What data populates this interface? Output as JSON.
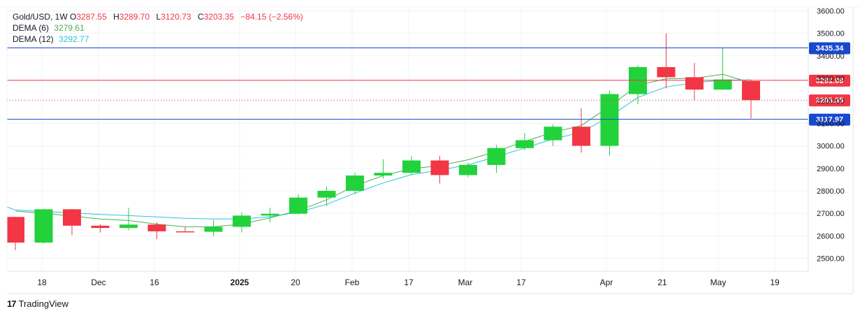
{
  "legend": {
    "symbol": "Gold/USD, 1W",
    "ohlc": [
      {
        "label": "O",
        "value": "3287.55"
      },
      {
        "label": "H",
        "value": "3289.70"
      },
      {
        "label": "L",
        "value": "3120.73"
      },
      {
        "label": "C",
        "value": "3203.35"
      }
    ],
    "change": "−84.15 (−2.56%)",
    "dema6_label": "DEMA (6)",
    "dema6_value": "3279.61",
    "dema12_label": "DEMA (12)",
    "dema12_value": "3292.77"
  },
  "colors": {
    "up": "#22d23b",
    "down": "#f23645",
    "dema6": "#4caf50",
    "dema12": "#26c6da",
    "blue_line": "#1848cc",
    "red_line": "#f23645"
  },
  "brand": {
    "logo": "17",
    "name": "TradingView"
  },
  "chart_data": {
    "type": "candlestick",
    "ylim": [
      2450,
      3620
    ],
    "y_ticks": [
      "3600.00",
      "3500.00",
      "3400.00",
      "3300.00",
      "3200.00",
      "3100.00",
      "3000.00",
      "2900.00",
      "2800.00",
      "2700.00",
      "2600.00",
      "2500.00"
    ],
    "x_labels": [
      "18",
      "Dec",
      "16",
      "2025",
      "20",
      "Feb",
      "17",
      "Mar",
      "17",
      "Apr",
      "21",
      "May",
      "19"
    ],
    "candles": [
      {
        "o": 2684,
        "h": 2685,
        "l": 2537,
        "c": 2570
      },
      {
        "o": 2570,
        "h": 2721,
        "l": 2565,
        "c": 2718
      },
      {
        "o": 2718,
        "h": 2720,
        "l": 2603,
        "c": 2645
      },
      {
        "o": 2645,
        "h": 2651,
        "l": 2615,
        "c": 2635
      },
      {
        "o": 2635,
        "h": 2725,
        "l": 2625,
        "c": 2650
      },
      {
        "o": 2650,
        "h": 2660,
        "l": 2585,
        "c": 2620
      },
      {
        "o": 2620,
        "h": 2640,
        "l": 2615,
        "c": 2618
      },
      {
        "o": 2618,
        "h": 2670,
        "l": 2597,
        "c": 2640
      },
      {
        "o": 2640,
        "h": 2705,
        "l": 2615,
        "c": 2690
      },
      {
        "o": 2690,
        "h": 2725,
        "l": 2660,
        "c": 2698
      },
      {
        "o": 2698,
        "h": 2786,
        "l": 2695,
        "c": 2770
      },
      {
        "o": 2770,
        "h": 2818,
        "l": 2732,
        "c": 2800
      },
      {
        "o": 2800,
        "h": 2880,
        "l": 2785,
        "c": 2868
      },
      {
        "o": 2868,
        "h": 2940,
        "l": 2855,
        "c": 2880
      },
      {
        "o": 2880,
        "h": 2955,
        "l": 2870,
        "c": 2935
      },
      {
        "o": 2935,
        "h": 2956,
        "l": 2833,
        "c": 2870
      },
      {
        "o": 2870,
        "h": 2925,
        "l": 2860,
        "c": 2915
      },
      {
        "o": 2915,
        "h": 3004,
        "l": 2880,
        "c": 2990
      },
      {
        "o": 2990,
        "h": 3057,
        "l": 2980,
        "c": 3025
      },
      {
        "o": 3025,
        "h": 3095,
        "l": 3000,
        "c": 3085
      },
      {
        "o": 3085,
        "h": 3166,
        "l": 2970,
        "c": 3000
      },
      {
        "o": 3000,
        "h": 3245,
        "l": 2957,
        "c": 3230
      },
      {
        "o": 3230,
        "h": 3358,
        "l": 3185,
        "c": 3350
      },
      {
        "o": 3350,
        "h": 3500,
        "l": 3255,
        "c": 3305
      },
      {
        "o": 3305,
        "h": 3368,
        "l": 3202,
        "c": 3250
      },
      {
        "o": 3250,
        "h": 3435,
        "l": 3248,
        "c": 3295
      },
      {
        "o": 3288,
        "h": 3290,
        "l": 3121,
        "c": 3203
      }
    ],
    "dema6": [
      2710,
      2700,
      2688,
      2675,
      2668,
      2652,
      2640,
      2640,
      2652,
      2680,
      2712,
      2760,
      2822,
      2868,
      2898,
      2912,
      2938,
      2975,
      3020,
      3060,
      3090,
      3175,
      3270,
      3298,
      3300,
      3318,
      3280
    ],
    "dema12": [
      2715,
      2708,
      2702,
      2695,
      2690,
      2684,
      2678,
      2675,
      2675,
      2685,
      2705,
      2740,
      2790,
      2835,
      2872,
      2892,
      2915,
      2952,
      2990,
      3030,
      3060,
      3130,
      3215,
      3262,
      3280,
      3292,
      3293
    ],
    "price_lines": [
      {
        "value": 3435.34,
        "label": "3435.34",
        "style": "solid",
        "color": "#1848cc"
      },
      {
        "value": 3291.09,
        "label": "3291.09",
        "style": "solid",
        "color": "#f23645"
      },
      {
        "value": 3203.35,
        "label": "3203.35",
        "style": "dotted",
        "color": "#f23645"
      },
      {
        "value": 3117.97,
        "label": "3117.97",
        "style": "solid",
        "color": "#1848cc"
      }
    ]
  }
}
